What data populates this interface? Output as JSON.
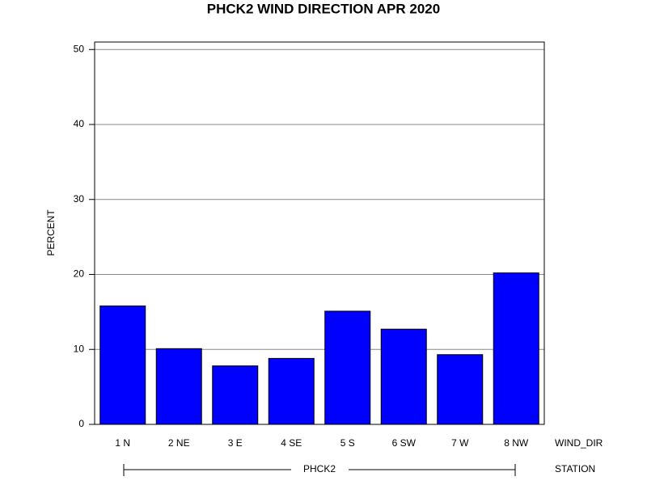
{
  "chart_data": {
    "type": "bar",
    "title": "PHCK2 WIND DIRECTION APR 2020",
    "y_label": "PERCENT",
    "x_label": "WIND_DIR",
    "group_label": "STATION",
    "group": "PHCK2",
    "categories": [
      "1 N",
      "2 NE",
      "3 E",
      "4 SE",
      "5 S",
      "6 SW",
      "7 W",
      "8 NW"
    ],
    "values": [
      15.8,
      10.1,
      7.8,
      8.8,
      15.1,
      12.7,
      9.3,
      20.2
    ],
    "color": "#0000ff",
    "ylim": [
      0,
      51
    ],
    "yticks": [
      0,
      10,
      20,
      30,
      40,
      50
    ],
    "grid": true
  }
}
